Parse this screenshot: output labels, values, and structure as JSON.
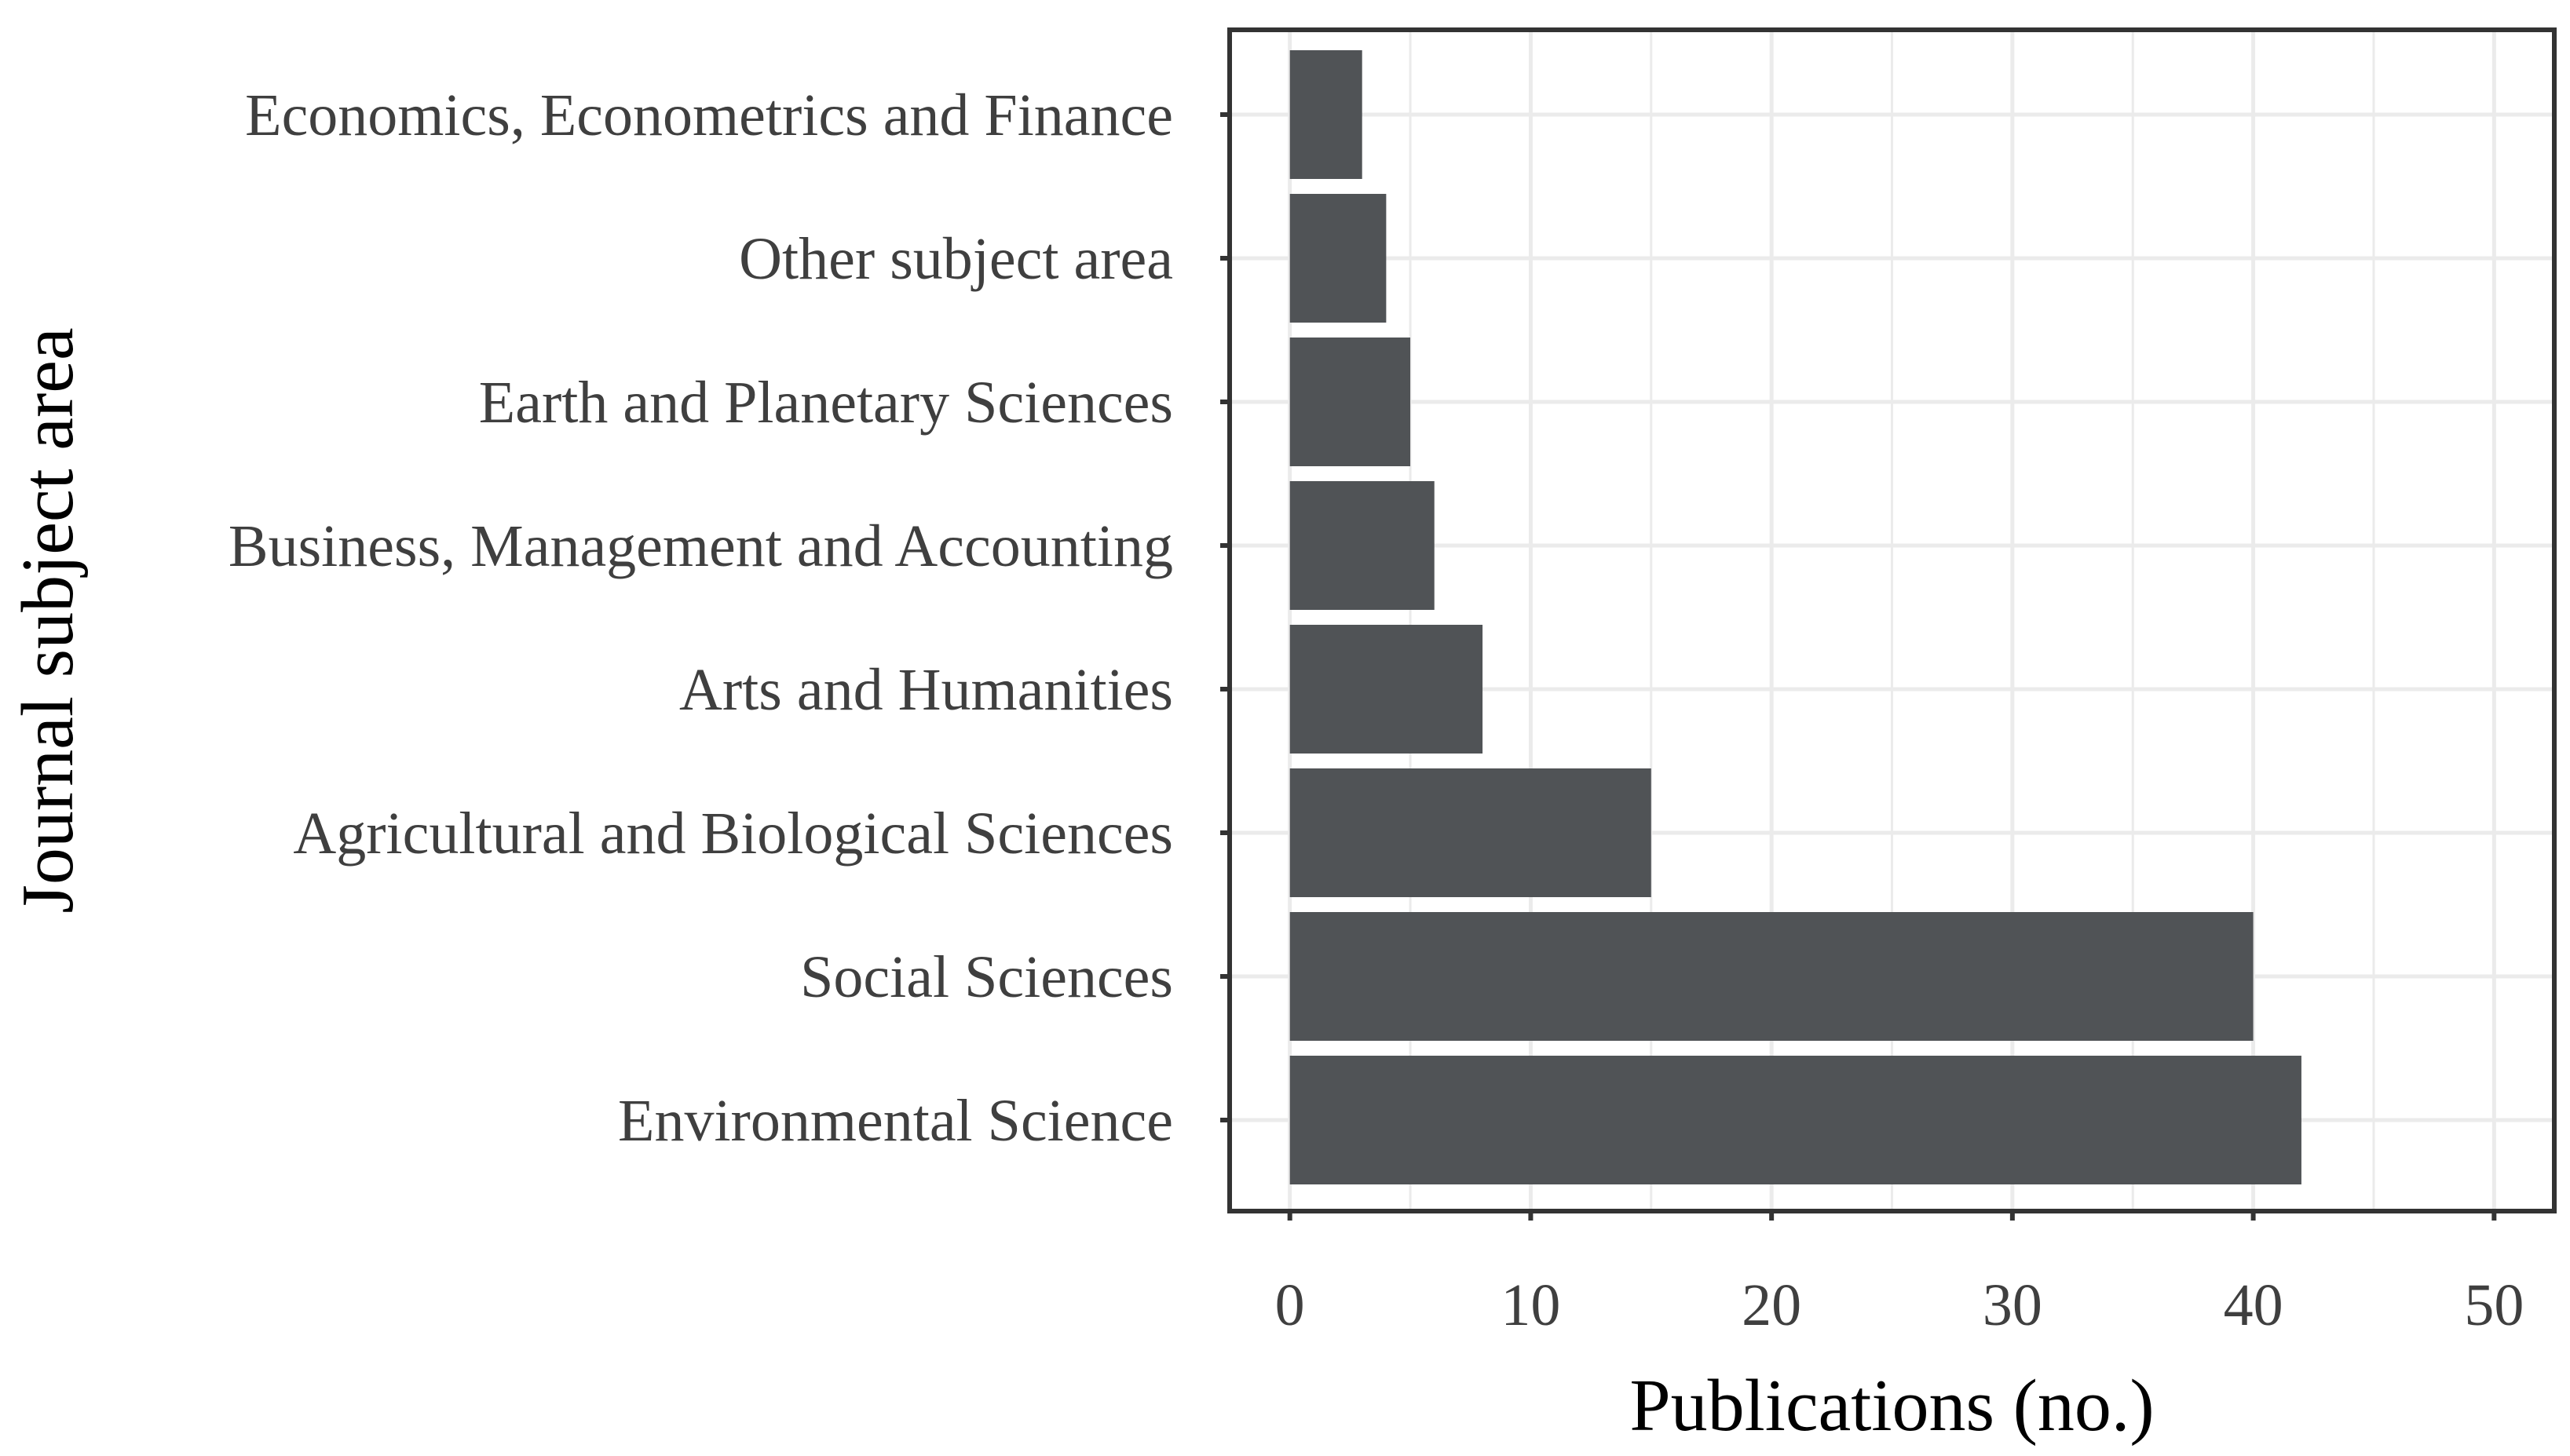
{
  "chart_data": {
    "type": "bar",
    "orientation": "horizontal",
    "categories": [
      "Economics, Econometrics and Finance",
      "Other subject area",
      "Earth and Planetary Sciences",
      "Business, Management and Accounting",
      "Arts and Humanities",
      "Agricultural and Biological Sciences",
      "Social Sciences",
      "Environmental Science"
    ],
    "values": [
      3,
      4,
      5,
      6,
      8,
      15,
      40,
      42
    ],
    "xlabel": "Publications (no.)",
    "ylabel": "Journal subject area",
    "xlim": [
      -2.5,
      52.5
    ],
    "xticks": [
      0,
      10,
      20,
      30,
      40,
      50
    ],
    "xtick_labels": [
      "0",
      "10",
      "20",
      "30",
      "40",
      "50"
    ],
    "grid": true,
    "legend": "none"
  },
  "colors": {
    "bar": "#505356",
    "grid": "#ebebeb",
    "frame": "#333333",
    "tick_text": "#3f3f3f",
    "title_text": "#000000"
  }
}
